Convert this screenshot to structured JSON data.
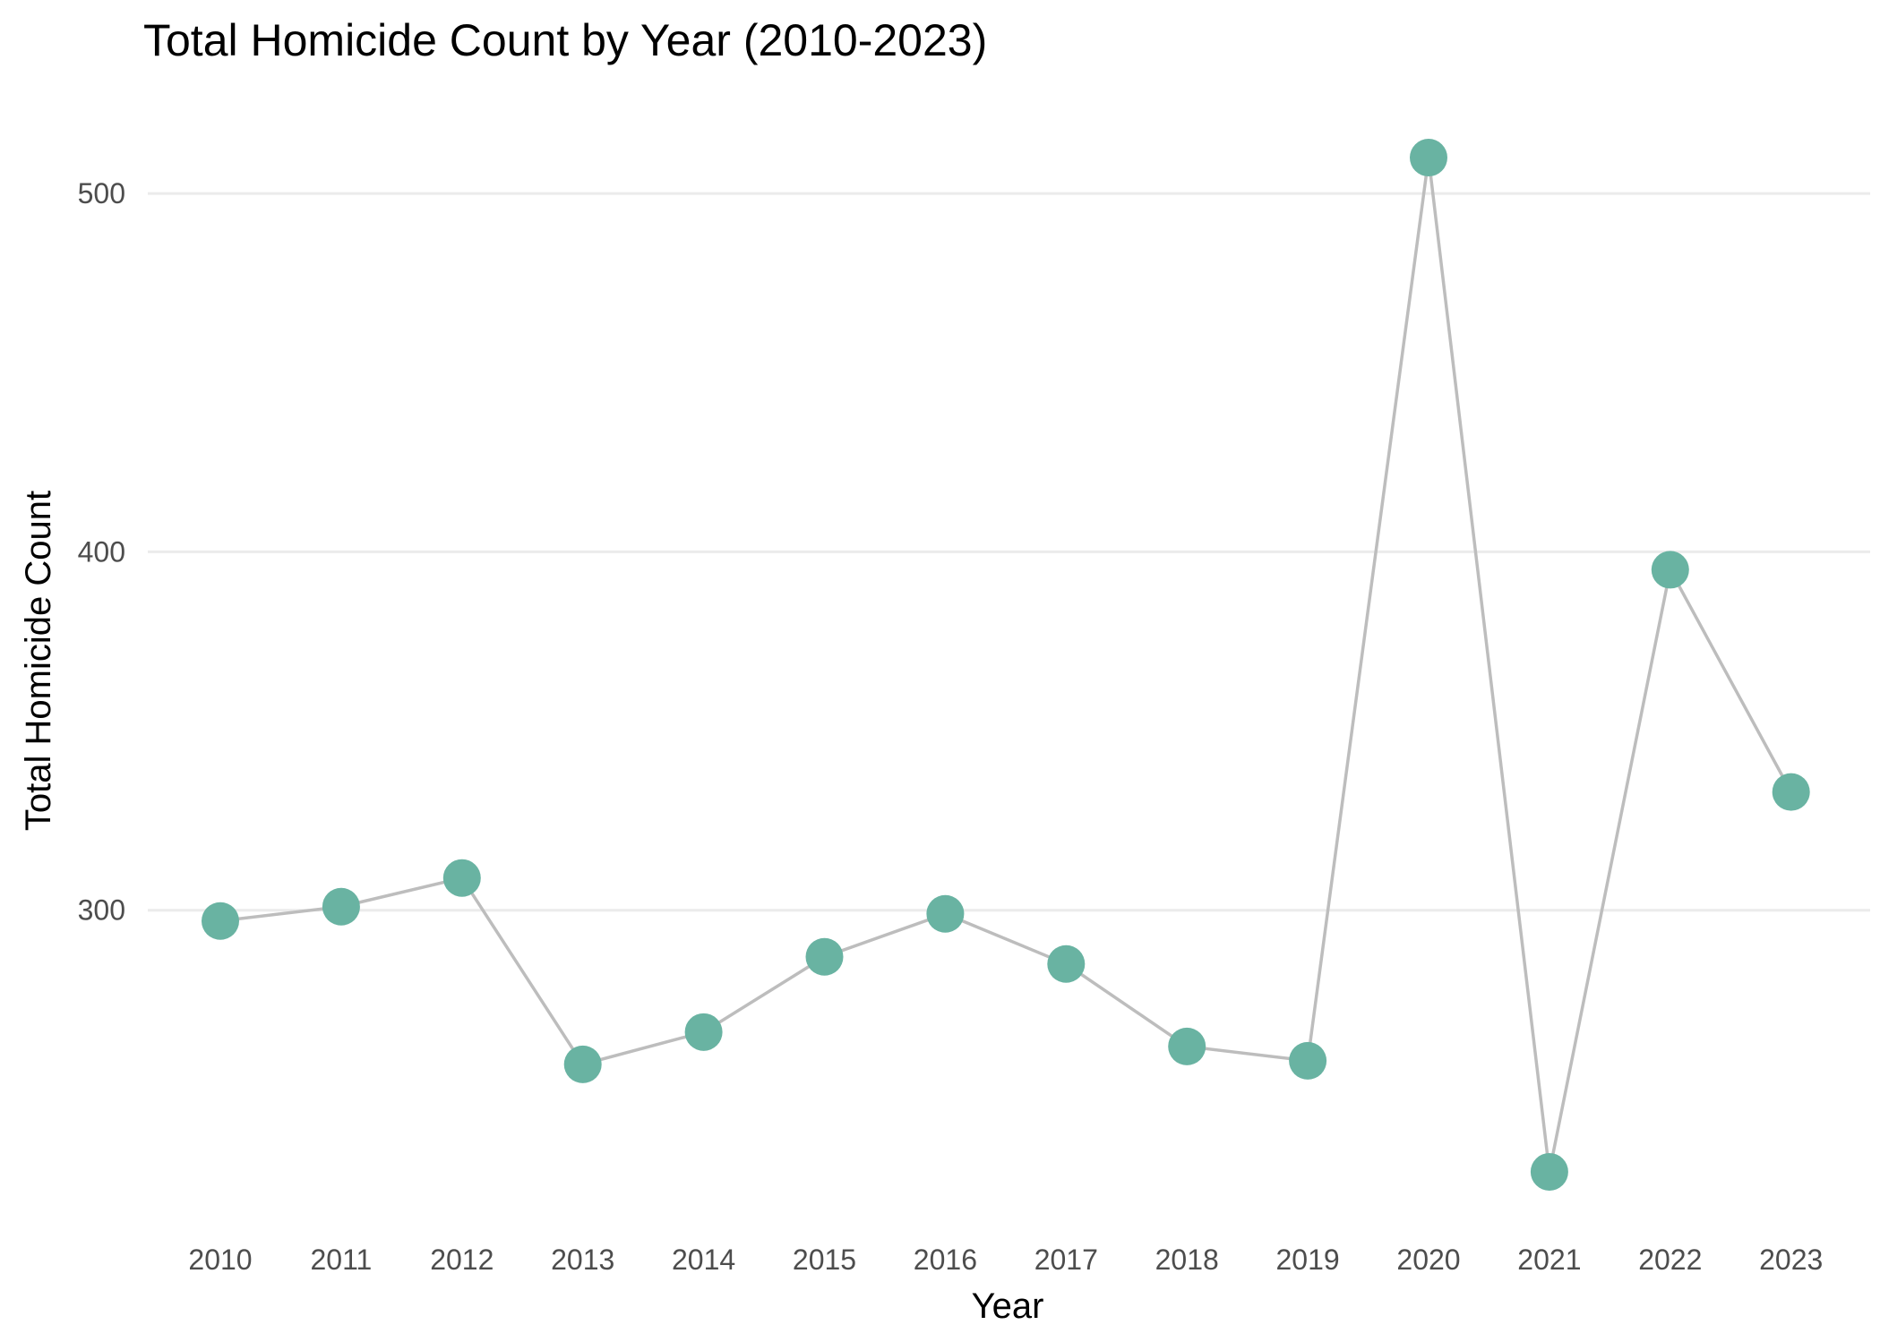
{
  "chart_data": {
    "type": "line",
    "title": "Total Homicide Count by Year (2010-2023)",
    "xlabel": "Year",
    "ylabel": "Total Homicide Count",
    "categories": [
      "2010",
      "2011",
      "2012",
      "2013",
      "2014",
      "2015",
      "2016",
      "2017",
      "2018",
      "2019",
      "2020",
      "2021",
      "2022",
      "2023"
    ],
    "series": [
      {
        "values": [
          297,
          301,
          309,
          257,
          266,
          287,
          299,
          285,
          262,
          258,
          510,
          227,
          395,
          333
        ]
      }
    ],
    "yticks": [
      "300",
      "400",
      "500"
    ],
    "ylim": [
      213,
      524
    ],
    "grid": "horizontal",
    "line_color": "#bdbdbd",
    "point_color": "#69b3a2",
    "grid_color": "#ebebeb"
  }
}
